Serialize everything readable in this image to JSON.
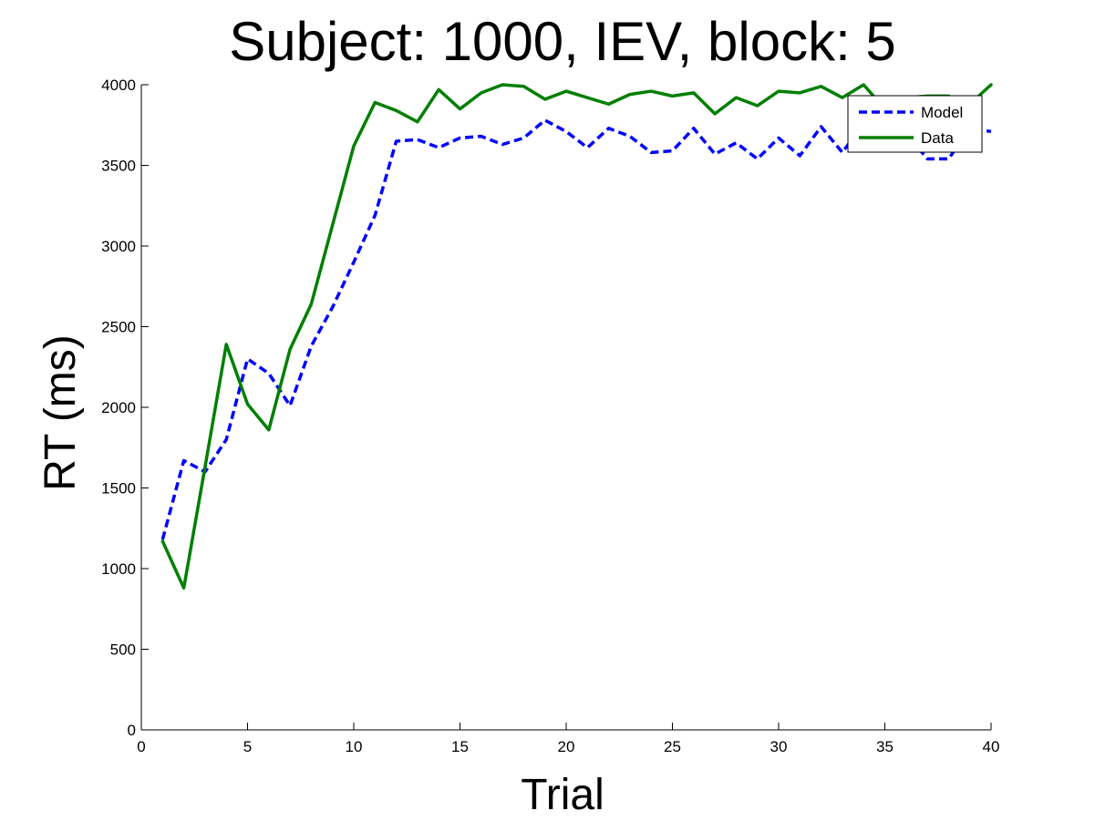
{
  "chart_data": {
    "type": "line",
    "title": "Subject: 1000, IEV, block: 5",
    "xlabel": "Trial",
    "ylabel": "RT (ms)",
    "xlim": [
      0,
      40
    ],
    "ylim": [
      0,
      4000
    ],
    "xticks": [
      0,
      5,
      10,
      15,
      20,
      25,
      30,
      35,
      40
    ],
    "yticks": [
      0,
      500,
      1000,
      1500,
      2000,
      2500,
      3000,
      3500,
      4000
    ],
    "grid": false,
    "legend_position": "top-right",
    "x": [
      1,
      2,
      3,
      4,
      5,
      6,
      7,
      8,
      9,
      10,
      11,
      12,
      13,
      14,
      15,
      16,
      17,
      18,
      19,
      20,
      21,
      22,
      23,
      24,
      25,
      26,
      27,
      28,
      29,
      30,
      31,
      32,
      33,
      34,
      35,
      36,
      37,
      38,
      39,
      40
    ],
    "series": [
      {
        "name": "Model",
        "color": "#0000ff",
        "style": "dashed",
        "values": [
          1180,
          1670,
          1600,
          1800,
          2300,
          2210,
          2010,
          2380,
          2620,
          2900,
          3190,
          3650,
          3660,
          3610,
          3670,
          3680,
          3630,
          3670,
          3780,
          3710,
          3610,
          3730,
          3680,
          3580,
          3590,
          3730,
          3570,
          3640,
          3540,
          3670,
          3560,
          3740,
          3580,
          3760,
          3650,
          3700,
          3540,
          3540,
          3730,
          3710
        ]
      },
      {
        "name": "Data",
        "color": "#007f00",
        "style": "solid",
        "values": [
          1170,
          880,
          1630,
          2390,
          2020,
          1860,
          2360,
          2640,
          3130,
          3620,
          3890,
          3840,
          3770,
          3970,
          3850,
          3950,
          4000,
          3990,
          3910,
          3960,
          3920,
          3880,
          3940,
          3960,
          3930,
          3950,
          3820,
          3920,
          3870,
          3960,
          3950,
          3990,
          3920,
          4000,
          3850,
          3920,
          3930,
          3930,
          3880,
          4000
        ]
      }
    ]
  }
}
